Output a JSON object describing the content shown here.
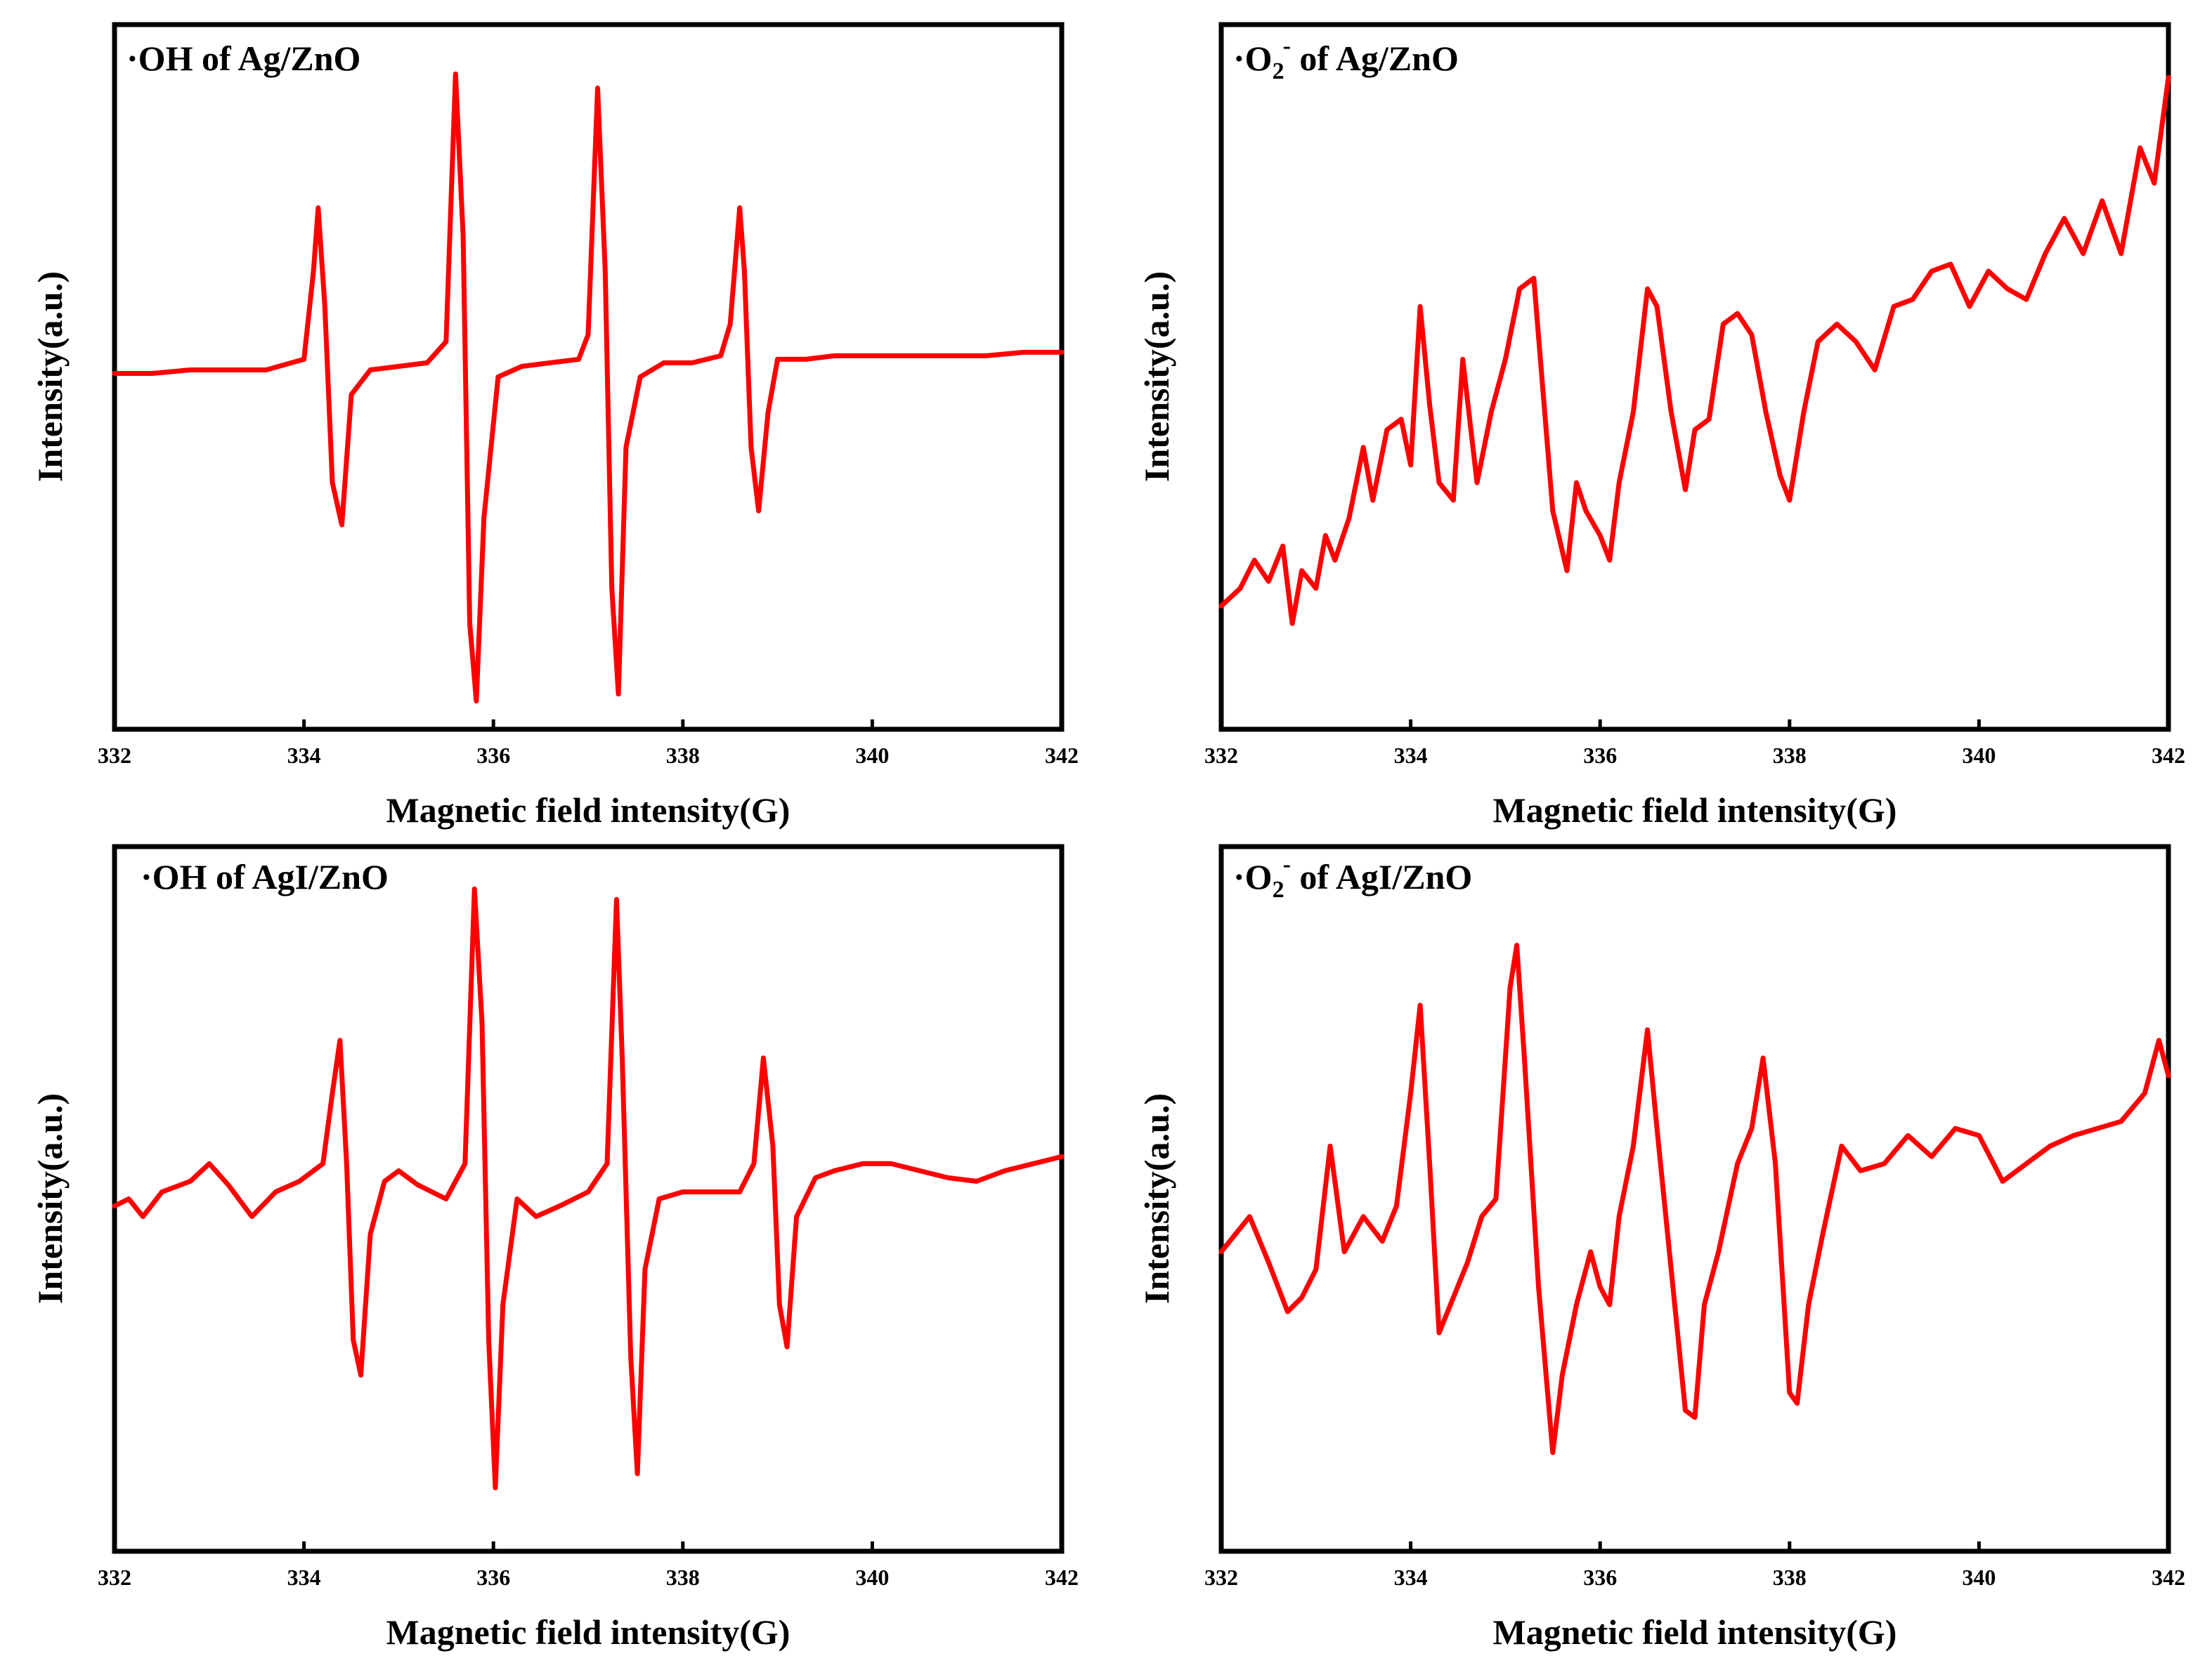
{
  "chart_data": [
    {
      "type": "line",
      "title": {
        "prefix": "·OH of Ag/ZnO"
      },
      "xlabel": "Magnetic field intensity(G)",
      "ylabel": "Intensity(a.u.)",
      "xlim": [
        332,
        342
      ],
      "ylim": [
        -1.0,
        1.0
      ],
      "xticks": [
        "332",
        "334",
        "336",
        "338",
        "340",
        "342"
      ],
      "color": "#ff0000",
      "series": [
        {
          "name": "Ag/ZnO OH",
          "x": [
            332,
            332.4,
            332.8,
            333.2,
            333.6,
            334.0,
            334.1,
            334.15,
            334.22,
            334.3,
            334.4,
            334.5,
            334.7,
            335.0,
            335.3,
            335.5,
            335.6,
            335.68,
            335.75,
            335.82,
            335.9,
            336.05,
            336.3,
            336.6,
            336.9,
            337.0,
            337.1,
            337.18,
            337.25,
            337.32,
            337.4,
            337.55,
            337.8,
            338.1,
            338.4,
            338.5,
            338.6,
            338.65,
            338.72,
            338.8,
            338.9,
            339.0,
            339.3,
            339.6,
            340.0,
            340.4,
            340.8,
            341.2,
            341.6,
            342.0
          ],
          "y": [
            0.01,
            0.01,
            0.02,
            0.02,
            0.02,
            0.05,
            0.3,
            0.48,
            0.2,
            -0.3,
            -0.42,
            -0.05,
            0.02,
            0.03,
            0.04,
            0.1,
            0.86,
            0.4,
            -0.7,
            -0.92,
            -0.4,
            0.0,
            0.03,
            0.04,
            0.05,
            0.12,
            0.82,
            0.3,
            -0.6,
            -0.9,
            -0.2,
            0.0,
            0.04,
            0.04,
            0.06,
            0.15,
            0.48,
            0.3,
            -0.2,
            -0.38,
            -0.1,
            0.05,
            0.05,
            0.06,
            0.06,
            0.06,
            0.06,
            0.06,
            0.07,
            0.07
          ]
        }
      ]
    },
    {
      "type": "line",
      "title": {
        "prefix": "·O",
        "sub": "2",
        "sup": "-",
        "suffix": " of Ag/ZnO"
      },
      "xlabel": "Magnetic field intensity(G)",
      "ylabel": "Intensity(a.u.)",
      "xlim": [
        332,
        342
      ],
      "ylim": [
        -1.0,
        1.0
      ],
      "xticks": [
        "332",
        "334",
        "336",
        "338",
        "340",
        "342"
      ],
      "color": "#ff0000",
      "series": [
        {
          "name": "Ag/ZnO O2-",
          "x": [
            332.0,
            332.2,
            332.35,
            332.5,
            332.65,
            332.75,
            332.85,
            333.0,
            333.1,
            333.2,
            333.35,
            333.5,
            333.6,
            333.75,
            333.9,
            334.0,
            334.1,
            334.2,
            334.3,
            334.45,
            334.55,
            334.7,
            334.85,
            335.0,
            335.15,
            335.3,
            335.4,
            335.5,
            335.65,
            335.75,
            335.85,
            336.0,
            336.1,
            336.2,
            336.35,
            336.5,
            336.6,
            336.75,
            336.9,
            337.0,
            337.15,
            337.3,
            337.45,
            337.6,
            337.75,
            337.9,
            338.0,
            338.15,
            338.3,
            338.5,
            338.7,
            338.9,
            339.1,
            339.3,
            339.5,
            339.7,
            339.9,
            340.1,
            340.3,
            340.5,
            340.7,
            340.9,
            341.1,
            341.3,
            341.5,
            341.7,
            341.85,
            342.0
          ],
          "y": [
            -0.65,
            -0.6,
            -0.52,
            -0.58,
            -0.48,
            -0.7,
            -0.55,
            -0.6,
            -0.45,
            -0.52,
            -0.4,
            -0.2,
            -0.35,
            -0.15,
            -0.12,
            -0.25,
            0.2,
            -0.08,
            -0.3,
            -0.35,
            0.05,
            -0.3,
            -0.1,
            0.05,
            0.25,
            0.28,
            -0.05,
            -0.38,
            -0.55,
            -0.3,
            -0.38,
            -0.45,
            -0.52,
            -0.3,
            -0.1,
            0.25,
            0.2,
            -0.1,
            -0.32,
            -0.15,
            -0.12,
            0.15,
            0.18,
            0.12,
            -0.1,
            -0.28,
            -0.35,
            -0.1,
            0.1,
            0.15,
            0.1,
            0.02,
            0.2,
            0.22,
            0.3,
            0.32,
            0.2,
            0.3,
            0.25,
            0.22,
            0.35,
            0.45,
            0.35,
            0.5,
            0.35,
            0.65,
            0.55,
            0.85
          ]
        }
      ]
    },
    {
      "type": "line",
      "title": {
        "prefix": "·OH of AgI/ZnO"
      },
      "xlabel": "Magnetic field intensity(G)",
      "ylabel": "Intensity(a.u.)",
      "xlim": [
        332,
        342
      ],
      "ylim": [
        -1.0,
        1.0
      ],
      "xticks": [
        "332",
        "334",
        "336",
        "338",
        "340",
        "342"
      ],
      "color": "#ff0000",
      "series": [
        {
          "name": "AgI/ZnO OH",
          "x": [
            332.0,
            332.15,
            332.3,
            332.5,
            332.8,
            333.0,
            333.2,
            333.45,
            333.7,
            333.95,
            334.2,
            334.3,
            334.38,
            334.45,
            334.52,
            334.6,
            334.7,
            334.85,
            335.0,
            335.2,
            335.5,
            335.7,
            335.8,
            335.88,
            335.95,
            336.02,
            336.1,
            336.25,
            336.45,
            336.7,
            337.0,
            337.2,
            337.3,
            337.36,
            337.45,
            337.52,
            337.6,
            337.75,
            338.0,
            338.3,
            338.6,
            338.75,
            338.85,
            338.95,
            339.02,
            339.1,
            339.2,
            339.4,
            339.6,
            339.9,
            340.2,
            340.5,
            340.8,
            341.1,
            341.4,
            341.7,
            342.0
          ],
          "y": [
            -0.02,
            0.0,
            -0.05,
            0.02,
            0.05,
            0.1,
            0.04,
            -0.05,
            0.02,
            0.05,
            0.1,
            0.3,
            0.45,
            0.1,
            -0.4,
            -0.5,
            -0.1,
            0.05,
            0.08,
            0.04,
            0.0,
            0.1,
            0.88,
            0.5,
            -0.4,
            -0.82,
            -0.3,
            0.0,
            -0.05,
            -0.02,
            0.02,
            0.1,
            0.85,
            0.4,
            -0.45,
            -0.78,
            -0.2,
            0.0,
            0.02,
            0.02,
            0.02,
            0.1,
            0.4,
            0.15,
            -0.3,
            -0.42,
            -0.05,
            0.06,
            0.08,
            0.1,
            0.1,
            0.08,
            0.06,
            0.05,
            0.08,
            0.1,
            0.12
          ]
        }
      ]
    },
    {
      "type": "line",
      "title": {
        "prefix": "·O",
        "sub": "2",
        "sup": "-",
        "suffix": " of AgI/ZnO"
      },
      "xlabel": "Magnetic field intensity(G)",
      "ylabel": "Intensity(a.u.)",
      "xlim": [
        332,
        342
      ],
      "ylim": [
        -1.0,
        1.0
      ],
      "xticks": [
        "332",
        "334",
        "336",
        "338",
        "340",
        "342"
      ],
      "color": "#ff0000",
      "series": [
        {
          "name": "AgI/ZnO O2-",
          "x": [
            332.0,
            332.15,
            332.3,
            332.5,
            332.7,
            332.85,
            333.0,
            333.15,
            333.3,
            333.5,
            333.7,
            333.85,
            334.0,
            334.1,
            334.2,
            334.3,
            334.45,
            334.6,
            334.75,
            334.9,
            335.05,
            335.12,
            335.2,
            335.35,
            335.5,
            335.6,
            335.75,
            335.9,
            336.0,
            336.1,
            336.2,
            336.35,
            336.5,
            336.6,
            336.75,
            336.9,
            337.0,
            337.1,
            337.25,
            337.45,
            337.6,
            337.72,
            337.85,
            338.0,
            338.08,
            338.2,
            338.35,
            338.55,
            338.75,
            339.0,
            339.25,
            339.5,
            339.75,
            340.0,
            340.25,
            340.5,
            340.75,
            341.0,
            341.25,
            341.5,
            341.75,
            341.9,
            342.0
          ],
          "y": [
            -0.15,
            -0.1,
            -0.05,
            -0.18,
            -0.32,
            -0.28,
            -0.2,
            0.15,
            -0.15,
            -0.05,
            -0.12,
            -0.02,
            0.3,
            0.55,
            0.1,
            -0.38,
            -0.28,
            -0.18,
            -0.05,
            0.0,
            0.6,
            0.72,
            0.4,
            -0.25,
            -0.72,
            -0.5,
            -0.3,
            -0.15,
            -0.25,
            -0.3,
            -0.05,
            0.15,
            0.48,
            0.2,
            -0.2,
            -0.6,
            -0.62,
            -0.3,
            -0.15,
            0.1,
            0.2,
            0.4,
            0.1,
            -0.55,
            -0.58,
            -0.3,
            -0.1,
            0.15,
            0.08,
            0.1,
            0.18,
            0.12,
            0.2,
            0.18,
            0.05,
            0.1,
            0.15,
            0.18,
            0.2,
            0.22,
            0.3,
            0.45,
            0.35
          ]
        }
      ]
    }
  ]
}
